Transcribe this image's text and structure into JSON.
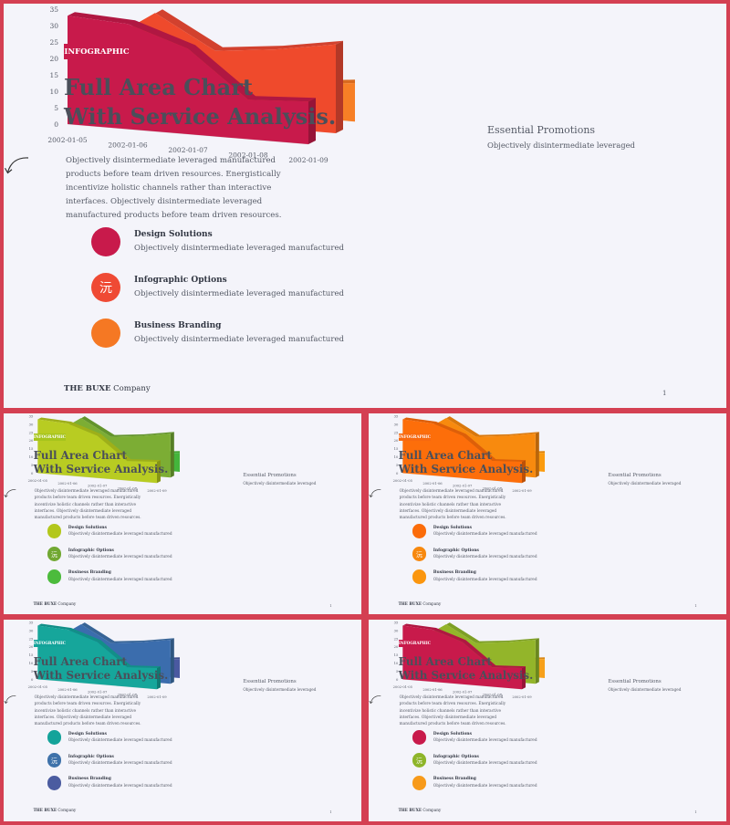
{
  "slide": {
    "badge": "INFOGRAPHIC",
    "title_line1": "Full Area Chart",
    "title_line2": "With Service Analysis.",
    "intro": "Objectively disintermediate leveraged manufactured products before team driven resources. Energistically incentivize holistic channels rather than interactive interfaces. Objectively disintermediate leveraged manufactured products before team  driven resources.",
    "features": [
      {
        "title": "Design Solutions",
        "desc": "Objectively disintermediate leveraged manufactured",
        "icon": "circle"
      },
      {
        "title": "Infographic Options",
        "desc": "Objectively disintermediate leveraged manufactured",
        "icon": "share-icon",
        "glyph": "沅"
      },
      {
        "title": "Business Branding",
        "desc": "Objectively disintermediate leveraged manufactured",
        "icon": "circle"
      }
    ],
    "annotation": {
      "title": "Essential Promotions",
      "subtitle": "Objectively disintermediate leveraged"
    },
    "brand_bold": "THE BUXE",
    "brand_rest": " Company",
    "page_number": "1",
    "small_page_numbers": [
      "1",
      "1",
      "1",
      "1"
    ]
  },
  "chart_data": {
    "type": "area",
    "categories": [
      "2002-01-05",
      "2002-01-06",
      "2002-01-07",
      "2002-01-08",
      "2002-01-09"
    ],
    "series": [
      {
        "values": [
          33,
          32,
          26,
          12,
          13
        ]
      },
      {
        "values": [
          20,
          32,
          22,
          24,
          27
        ]
      },
      {
        "values": [
          10,
          10,
          10,
          10,
          12
        ]
      }
    ],
    "ylim": [
      0,
      35
    ],
    "yticks": [
      "0",
      "5",
      "10",
      "15",
      "20",
      "25",
      "30",
      "35"
    ]
  },
  "themes": [
    {
      "name": "crimson",
      "badge": "#c81a4b",
      "colors": [
        "#c81a4b",
        "#ef4a34",
        "#f57823"
      ],
      "front": [
        "#c81a4b",
        "#ef4a2c",
        "#f77f26"
      ]
    },
    {
      "name": "lime",
      "badge": "#a6c41c",
      "colors": [
        "#b3c71c",
        "#71a832",
        "#4cbb3c"
      ],
      "front": [
        "#b8cc22",
        "#7cad34",
        "#44b53c"
      ]
    },
    {
      "name": "orange",
      "badge": "#f7680f",
      "colors": [
        "#fb6c0a",
        "#f7880e",
        "#fb960e"
      ],
      "front": [
        "#fd6e0a",
        "#f88a0e",
        "#fb9b0e"
      ]
    },
    {
      "name": "teal",
      "badge": "#14a39a",
      "colors": [
        "#14a39a",
        "#3f72aa",
        "#4b5ca0"
      ],
      "front": [
        "#16a69b",
        "#3b6dad",
        "#4a59a0"
      ]
    },
    {
      "name": "mixed",
      "badge": "#c81a4b",
      "colors": [
        "#c81a4b",
        "#8eb52a",
        "#f79a1a"
      ],
      "front": [
        "#c81a4b",
        "#93b52a",
        "#f7a01a"
      ]
    }
  ]
}
